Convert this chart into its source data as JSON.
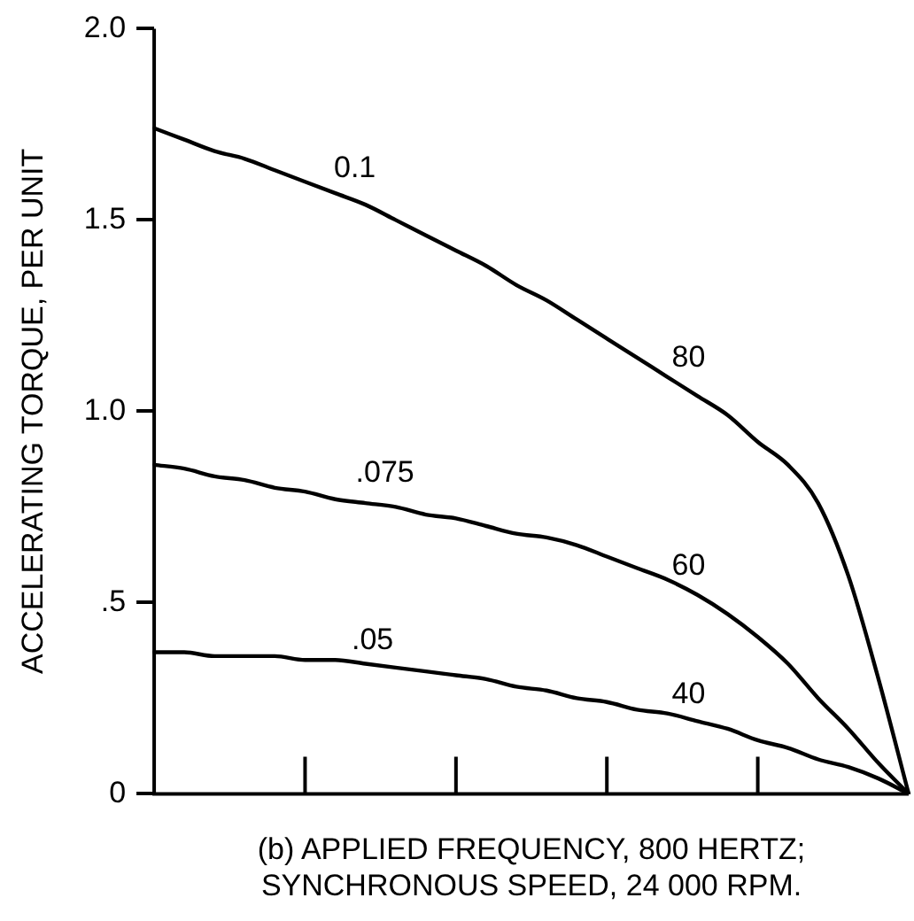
{
  "chart_data": {
    "type": "line",
    "xlabel": "(b) APPLIED FREQUENCY, 800 HERTZ;\nSYNCHRONOUS SPEED, 24 000 RPM.",
    "ylabel": "ACCELERATING TORQUE, PER UNIT",
    "categories": [
      null,
      null,
      null,
      null,
      null,
      null,
      null,
      null,
      null,
      null,
      null,
      null,
      null,
      null,
      null,
      null,
      null,
      null,
      null,
      null,
      null,
      null,
      null,
      null,
      null,
      null
    ],
    "series": [
      {
        "color": "#000000",
        "values": [
          1.74,
          1.71,
          1.68,
          1.66,
          1.63,
          1.6,
          1.57,
          1.54,
          1.5,
          1.46,
          1.42,
          1.38,
          1.33,
          1.29,
          1.24,
          1.19,
          1.14,
          1.09,
          1.04,
          0.99,
          0.92,
          0.86,
          0.76,
          0.57,
          0.3,
          0
        ]
      },
      {
        "color": "#000000",
        "values": [
          0.86,
          0.85,
          0.83,
          0.82,
          0.8,
          0.79,
          0.77,
          0.76,
          0.75,
          0.73,
          0.72,
          0.7,
          0.68,
          0.67,
          0.65,
          0.62,
          0.59,
          0.56,
          0.52,
          0.47,
          0.41,
          0.34,
          0.25,
          0.17,
          0.08,
          0
        ]
      },
      {
        "color": "#000000",
        "values": [
          0.37,
          0.37,
          0.36,
          0.36,
          0.36,
          0.35,
          0.35,
          0.34,
          0.33,
          0.32,
          0.31,
          0.3,
          0.28,
          0.27,
          0.25,
          0.24,
          0.22,
          0.21,
          0.19,
          0.17,
          0.14,
          0.12,
          0.09,
          0.07,
          0.04,
          0
        ]
      }
    ],
    "annotations": [
      "0.1",
      "80",
      ".075",
      "60",
      ".05",
      "40"
    ],
    "ylim": [
      0,
      2
    ],
    "yticks": [
      0,
      {
        "value": 0.5,
        "label": ".5"
      },
      {
        "value": 1,
        "label": "1.0"
      },
      {
        "value": 1.5,
        "label": "1.5"
      },
      {
        "value": 2,
        "label": "2.0"
      }
    ],
    "tick_labels": "y",
    "grid": false,
    "legend": false,
    "marker": "none",
    "line_style": "solid"
  }
}
